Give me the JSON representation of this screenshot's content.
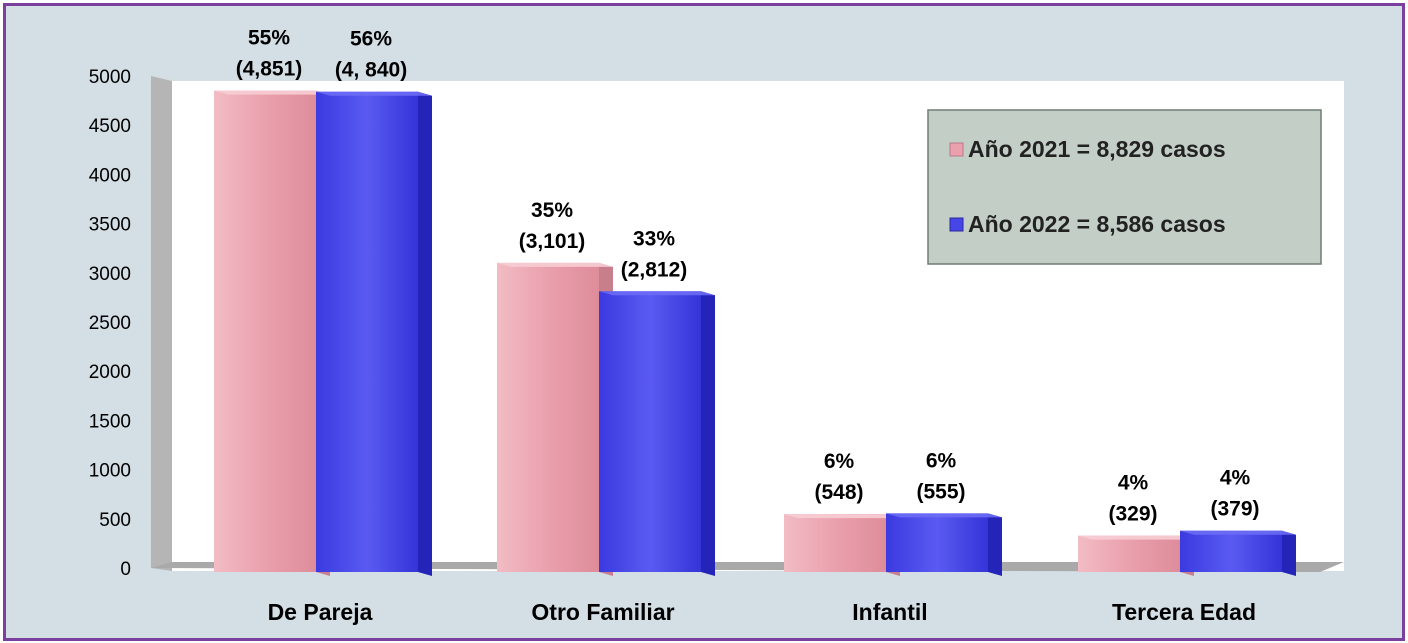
{
  "chart_data": {
    "type": "bar",
    "categories": [
      "De Pareja",
      "Otro  Familiar",
      "Infantil",
      "Tercera Edad"
    ],
    "series": [
      {
        "name": "Año 2021 =  8,829  casos",
        "values": [
          4851,
          3101,
          548,
          329
        ],
        "labels_pct": [
          "55%",
          "35%",
          "6%",
          "4%"
        ],
        "labels_count": [
          "(4,851)",
          "(3,101)",
          "(548)",
          "(329)"
        ],
        "color": "#eaa0ad"
      },
      {
        "name": "Año 2022 =  8,586 casos",
        "values": [
          4840,
          2812,
          555,
          379
        ],
        "labels_pct": [
          "56%",
          "33%",
          "6%",
          "4%"
        ],
        "labels_count": [
          "(4, 840)",
          "(2,812)",
          "(555)",
          "(379)"
        ],
        "color": "#4545e8"
      }
    ],
    "yticks": [
      "0",
      "500",
      "1000",
      "1500",
      "2000",
      "2500",
      "3000",
      "3500",
      "4000",
      "4500",
      "5000"
    ],
    "ylim": [
      0,
      5000
    ],
    "legend_position": "top-right",
    "grid": false
  },
  "colors": {
    "frame_border": "#7b3f9e",
    "frame_bg": "#d3dee5",
    "plot_bg": "#ffffff",
    "legend_bg": "#c3cec6"
  }
}
